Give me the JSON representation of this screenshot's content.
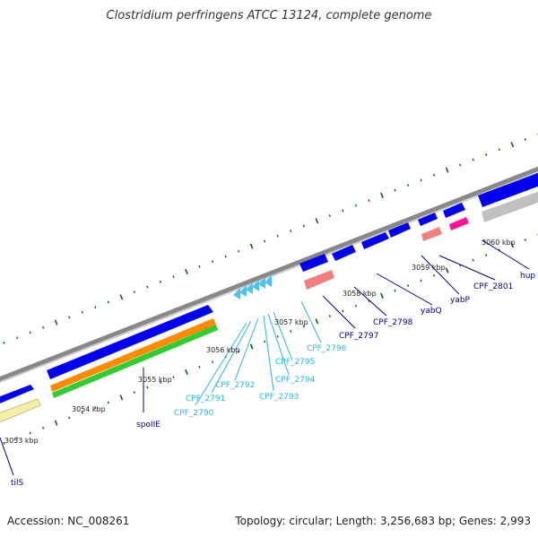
{
  "title": "Clostridium perfringens ATCC 13124, complete genome",
  "footer": {
    "accession": "Accession: NC_008261",
    "topology": "Topology: circular; Length: 3,256,683 bp; Genes: 2,993"
  },
  "ticks": [
    "3053 kbp",
    "3054 kbp",
    "3055 kbp",
    "3056 kbp",
    "3057 kbp",
    "3058 kbp",
    "3059 kbp",
    "3060 kbp"
  ],
  "labels": {
    "tilS": "tilS",
    "spoIIE": "spoIIE",
    "CPF_2790": "CPF_2790",
    "CPF_2791": "CPF_2791",
    "CPF_2792": "CPF_2792",
    "CPF_2793": "CPF_2793",
    "CPF_2794": "CPF_2794",
    "CPF_2795": "CPF_2795",
    "CPF_2796": "CPF_2796",
    "CPF_2797": "CPF_2797",
    "CPF_2798": "CPF_2798",
    "yabQ": "yabQ",
    "yabP": "yabP",
    "CPF_2801": "CPF_2801",
    "hup": "hup"
  },
  "colors": {
    "forward_gene": "#0000ee",
    "small_gene": "#4fc3f0",
    "rrna": "#ff8c00",
    "trna": "#33cc33",
    "misc": "#f4efaa",
    "pink": "#f08080",
    "magenta": "#ff1493",
    "grey": "#c0c0c0",
    "tick": "#006600",
    "label_dark": "#00008b",
    "label_light": "#29b6e0"
  }
}
